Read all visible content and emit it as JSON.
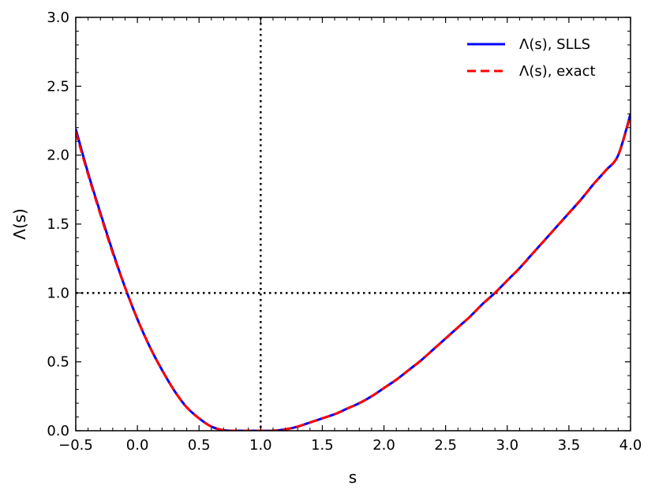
{
  "chart_data": {
    "type": "line",
    "xlabel": "s",
    "ylabel": "Λ(s)",
    "xlim": [
      -0.5,
      4.0
    ],
    "ylim": [
      0.0,
      3.0
    ],
    "xticks": [
      "−0.5",
      "0.0",
      "0.5",
      "1.0",
      "1.5",
      "2.0",
      "2.5",
      "3.0",
      "3.5",
      "4.0"
    ],
    "yticks": [
      "0.0",
      "0.5",
      "1.0",
      "1.5",
      "2.0",
      "2.5",
      "3.0"
    ],
    "grid": false,
    "legend_position": "top-right",
    "reference_lines": {
      "vertical_x": 1.0,
      "horizontal_y": 1.0,
      "style": "dotted",
      "color": "#000000"
    },
    "series": [
      {
        "name": "Λ(s), SLLS",
        "color": "#0000ff",
        "style": "solid",
        "x": [
          -0.5,
          -0.4,
          -0.3,
          -0.2,
          -0.1,
          0.0,
          0.1,
          0.2,
          0.3,
          0.4,
          0.5,
          0.6,
          0.7,
          0.8,
          0.9,
          1.0,
          1.1,
          1.2,
          1.3,
          1.4,
          1.5,
          1.6,
          1.7,
          1.8,
          1.9,
          2.0,
          2.1,
          2.2,
          2.3,
          2.4,
          2.5,
          2.6,
          2.7,
          2.8,
          2.9,
          3.0,
          3.1,
          3.2,
          3.3,
          3.4,
          3.5,
          3.6,
          3.7,
          3.8,
          3.9,
          4.0
        ],
        "y": [
          2.19,
          1.87,
          1.58,
          1.3,
          1.04,
          0.81,
          0.61,
          0.44,
          0.29,
          0.17,
          0.09,
          0.03,
          0.004,
          0.0,
          0.0,
          0.0,
          0.0,
          0.01,
          0.03,
          0.06,
          0.09,
          0.12,
          0.16,
          0.2,
          0.25,
          0.31,
          0.37,
          0.44,
          0.51,
          0.59,
          0.67,
          0.75,
          0.83,
          0.92,
          1.0,
          1.09,
          1.18,
          1.28,
          1.38,
          1.48,
          1.58,
          1.68,
          1.79,
          1.89,
          2.0,
          2.3
        ]
      },
      {
        "name": "Λ(s), exact",
        "color": "#ff0000",
        "style": "dashed",
        "x": [
          -0.5,
          -0.4,
          -0.3,
          -0.2,
          -0.1,
          0.0,
          0.1,
          0.2,
          0.3,
          0.4,
          0.5,
          0.6,
          0.7,
          0.8,
          0.9,
          1.0,
          1.1,
          1.2,
          1.3,
          1.4,
          1.5,
          1.6,
          1.7,
          1.8,
          1.9,
          2.0,
          2.1,
          2.2,
          2.3,
          2.4,
          2.5,
          2.6,
          2.7,
          2.8,
          2.9,
          3.0,
          3.1,
          3.2,
          3.3,
          3.4,
          3.5,
          3.6,
          3.7,
          3.8,
          3.9,
          4.0
        ],
        "y": [
          2.17,
          1.86,
          1.57,
          1.29,
          1.04,
          0.81,
          0.61,
          0.44,
          0.29,
          0.17,
          0.09,
          0.03,
          0.004,
          0.0,
          0.0,
          0.0,
          0.0,
          0.01,
          0.03,
          0.06,
          0.09,
          0.12,
          0.16,
          0.2,
          0.25,
          0.31,
          0.37,
          0.44,
          0.51,
          0.59,
          0.67,
          0.75,
          0.83,
          0.92,
          1.0,
          1.09,
          1.18,
          1.28,
          1.38,
          1.48,
          1.58,
          1.68,
          1.79,
          1.89,
          2.0,
          2.29
        ]
      }
    ]
  }
}
